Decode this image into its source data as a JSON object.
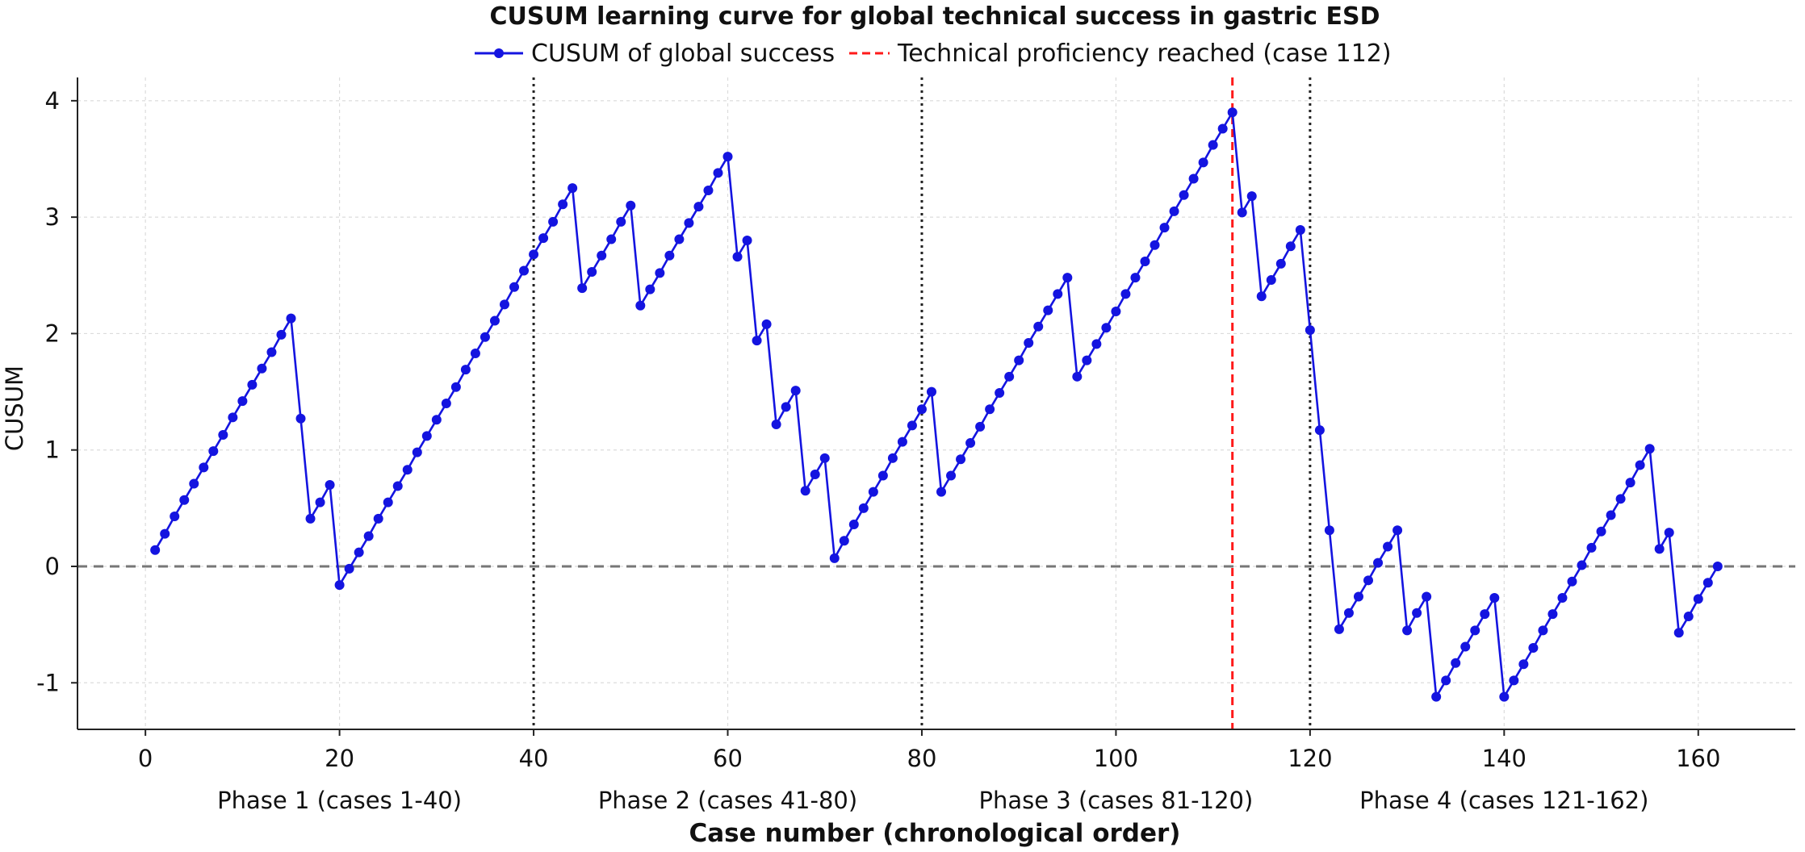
{
  "chart_data": {
    "type": "line",
    "title": "CUSUM learning curve for global technical success in gastric ESD",
    "xlabel": "Case number (chronological order)",
    "ylabel": "CUSUM",
    "xlim": [
      -7,
      170
    ],
    "ylim": [
      -1.4,
      4.2
    ],
    "x_ticks": [
      0,
      20,
      40,
      60,
      80,
      100,
      120,
      140,
      160
    ],
    "y_ticks": [
      -1,
      0,
      1,
      2,
      3,
      4
    ],
    "grid": true,
    "legend_position": "top-center",
    "series": [
      {
        "name": "CUSUM of global success",
        "color": "#1414e0",
        "marker": "circle",
        "x": [
          1,
          2,
          3,
          4,
          5,
          6,
          7,
          8,
          9,
          10,
          11,
          12,
          13,
          14,
          15,
          16,
          17,
          18,
          19,
          20,
          21,
          22,
          23,
          24,
          25,
          26,
          27,
          28,
          29,
          30,
          31,
          32,
          33,
          34,
          35,
          36,
          37,
          38,
          39,
          40,
          41,
          42,
          43,
          44,
          45,
          46,
          47,
          48,
          49,
          50,
          51,
          52,
          53,
          54,
          55,
          56,
          57,
          58,
          59,
          60,
          61,
          62,
          63,
          64,
          65,
          66,
          67,
          68,
          69,
          70,
          71,
          72,
          73,
          74,
          75,
          76,
          77,
          78,
          79,
          80,
          81,
          82,
          83,
          84,
          85,
          86,
          87,
          88,
          89,
          90,
          91,
          92,
          93,
          94,
          95,
          96,
          97,
          98,
          99,
          100,
          101,
          102,
          103,
          104,
          105,
          106,
          107,
          108,
          109,
          110,
          111,
          112,
          113,
          114,
          115,
          116,
          117,
          118,
          119,
          120,
          121,
          122,
          123,
          124,
          125,
          126,
          127,
          128,
          129,
          130,
          131,
          132,
          133,
          134,
          135,
          136,
          137,
          138,
          139,
          140,
          141,
          142,
          143,
          144,
          145,
          146,
          147,
          148,
          149,
          150,
          151,
          152,
          153,
          154,
          155,
          156,
          157,
          158,
          159,
          160,
          161,
          162
        ],
        "y": [
          0.14,
          0.28,
          0.43,
          0.57,
          0.71,
          0.85,
          0.99,
          1.13,
          1.28,
          1.42,
          1.56,
          1.7,
          1.84,
          1.99,
          2.13,
          1.27,
          0.41,
          0.55,
          0.7,
          -0.16,
          -0.02,
          0.12,
          0.26,
          0.41,
          0.55,
          0.69,
          0.83,
          0.98,
          1.12,
          1.26,
          1.4,
          1.54,
          1.69,
          1.83,
          1.97,
          2.11,
          2.25,
          2.4,
          2.54,
          2.68,
          2.82,
          2.96,
          3.11,
          3.25,
          2.39,
          2.53,
          2.67,
          2.81,
          2.96,
          3.1,
          2.24,
          2.38,
          2.52,
          2.67,
          2.81,
          2.95,
          3.09,
          3.23,
          3.38,
          3.52,
          2.66,
          2.8,
          1.94,
          2.08,
          1.22,
          1.37,
          1.51,
          0.65,
          0.79,
          0.93,
          0.07,
          0.22,
          0.36,
          0.5,
          0.64,
          0.78,
          0.93,
          1.07,
          1.21,
          1.35,
          1.5,
          0.64,
          0.78,
          0.92,
          1.06,
          1.2,
          1.35,
          1.49,
          1.63,
          1.77,
          1.92,
          2.06,
          2.2,
          2.34,
          2.48,
          1.63,
          1.77,
          1.91,
          2.05,
          2.19,
          2.34,
          2.48,
          2.62,
          2.76,
          2.91,
          3.05,
          3.19,
          3.33,
          3.47,
          3.62,
          3.76,
          3.9,
          3.04,
          3.18,
          2.32,
          2.46,
          2.6,
          2.75,
          2.89,
          2.03,
          1.17,
          0.31,
          -0.54,
          -0.4,
          -0.26,
          -0.12,
          0.03,
          0.17,
          0.31,
          -0.55,
          -0.4,
          -0.26,
          -1.12,
          -0.98,
          -0.83,
          -0.69,
          -0.55,
          -0.41,
          -0.27,
          -1.12,
          -0.98,
          -0.84,
          -0.7,
          -0.55,
          -0.41,
          -0.27,
          -0.13,
          0.01,
          0.16,
          0.3,
          0.44,
          0.58,
          0.72,
          0.87,
          1.01,
          0.15,
          0.29,
          -0.57,
          -0.43,
          -0.28,
          -0.14,
          0.0
        ]
      }
    ],
    "reference_lines": [
      {
        "name": "Technical proficiency reached (case 112)",
        "orientation": "vertical",
        "x": 112,
        "color": "#ff1a1a",
        "style": "dashed"
      },
      {
        "orientation": "horizontal",
        "y": 0,
        "color": "#777777",
        "style": "dashed"
      },
      {
        "orientation": "vertical",
        "x": 40,
        "color": "#222222",
        "style": "dotted"
      },
      {
        "orientation": "vertical",
        "x": 80,
        "color": "#222222",
        "style": "dotted"
      },
      {
        "orientation": "vertical",
        "x": 120,
        "color": "#222222",
        "style": "dotted"
      }
    ],
    "phase_labels": [
      {
        "text": "Phase 1 (cases 1-40)",
        "center": 20
      },
      {
        "text": "Phase 2 (cases 41-80)",
        "center": 60
      },
      {
        "text": "Phase 3 (cases 81-120)",
        "center": 100
      },
      {
        "text": "Phase 4 (cases 121-162)",
        "center": 140
      }
    ]
  }
}
